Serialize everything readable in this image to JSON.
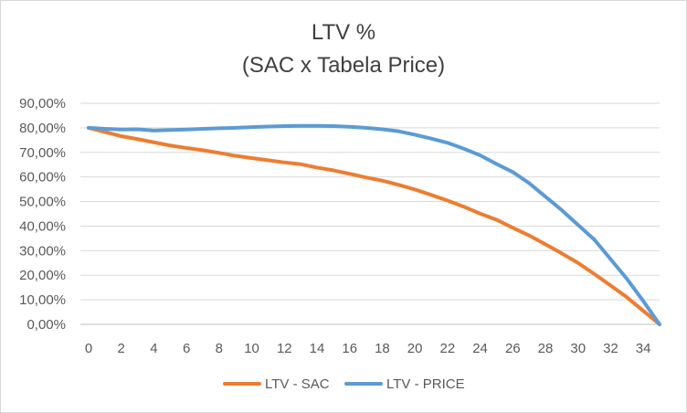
{
  "chart_data": {
    "type": "line",
    "title": "LTV %",
    "subtitle": "(SAC x Tabela Price)",
    "xlabel": "",
    "ylabel": "",
    "x": [
      0,
      1,
      2,
      3,
      4,
      5,
      6,
      7,
      8,
      9,
      10,
      11,
      12,
      13,
      14,
      15,
      16,
      17,
      18,
      19,
      20,
      21,
      22,
      23,
      24,
      25,
      26,
      27,
      28,
      29,
      30,
      31,
      32,
      33,
      34,
      35
    ],
    "x_ticks": [
      "0",
      "2",
      "4",
      "6",
      "8",
      "10",
      "12",
      "14",
      "16",
      "18",
      "20",
      "22",
      "24",
      "26",
      "28",
      "30",
      "32",
      "34"
    ],
    "y_ticks": [
      "0,00%",
      "10,00%",
      "20,00%",
      "30,00%",
      "40,00%",
      "50,00%",
      "60,00%",
      "70,00%",
      "80,00%",
      "90,00%"
    ],
    "ylim": [
      0,
      90
    ],
    "xlim": [
      0,
      35
    ],
    "grid": true,
    "legend": "bottom",
    "series": [
      {
        "name": "LTV - SAC",
        "color": "#ED7D31",
        "values": [
          80,
          78.3,
          76.6,
          75.4,
          74.1,
          72.8,
          71.8,
          70.9,
          69.8,
          68.6,
          67.7,
          66.8,
          65.9,
          65.2,
          63.8,
          62.7,
          61.3,
          59.8,
          58.5,
          56.8,
          54.9,
          52.7,
          50.4,
          47.9,
          45.1,
          42.6,
          39.3,
          36.2,
          32.6,
          28.9,
          25.0,
          20.5,
          15.8,
          11.0,
          5.5,
          0
        ]
      },
      {
        "name": "LTV - PRICE",
        "color": "#5B9BD5",
        "values": [
          80,
          79.6,
          79.3,
          79.4,
          78.9,
          79.1,
          79.3,
          79.6,
          79.8,
          80.0,
          80.3,
          80.5,
          80.7,
          80.8,
          80.8,
          80.7,
          80.4,
          80.0,
          79.4,
          78.6,
          77.2,
          75.6,
          73.9,
          71.5,
          68.8,
          65.3,
          62.0,
          57.5,
          52.0,
          46.5,
          40.5,
          34.5,
          26.5,
          18.5,
          9.5,
          0
        ]
      }
    ]
  }
}
